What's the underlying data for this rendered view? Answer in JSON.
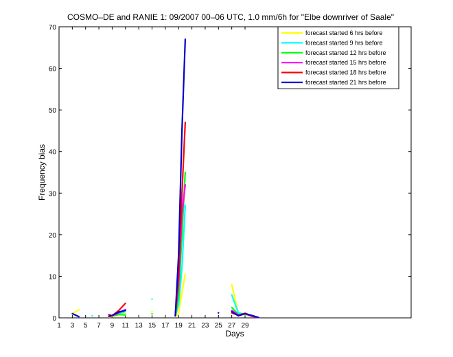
{
  "chart_data": {
    "type": "line",
    "title": "COSMO–DE and RANIE 1: 09/2007 00–06 UTC, 1.0 mm/6h for \"Elbe downriver of Saale\"",
    "xlabel": "Days",
    "ylabel": "Frequency bias",
    "xlim": [
      1,
      54
    ],
    "ylim": [
      0,
      70
    ],
    "xticks": [
      1,
      3,
      5,
      7,
      9,
      11,
      13,
      15,
      17,
      19,
      21,
      23,
      25,
      27,
      29
    ],
    "yticks": [
      0,
      10,
      20,
      30,
      40,
      50,
      60,
      70
    ],
    "legend_position": "top-right",
    "series": [
      {
        "name": "forecast started 6 hrs before",
        "color": "#ffff00",
        "segments": [
          [
            [
              3,
              1.0
            ],
            [
              4,
              2.0
            ]
          ],
          [
            [
              8.5,
              0.2
            ],
            [
              9,
              0.3
            ],
            [
              10,
              0.8
            ],
            [
              11,
              1.0
            ]
          ],
          [
            [
              18.5,
              0.4
            ],
            [
              19,
              1.0
            ],
            [
              19.5,
              6.0
            ],
            [
              20,
              10.5
            ]
          ],
          [
            [
              27,
              8.0
            ],
            [
              28,
              1.0
            ],
            [
              29,
              0.8
            ],
            [
              30,
              0.4
            ],
            [
              31,
              0.1
            ]
          ]
        ],
        "points": [
          [
            15,
            1.5
          ]
        ]
      },
      {
        "name": "forecast started 9 hrs before",
        "color": "#00ffff",
        "segments": [
          [
            [
              8.5,
              0.4
            ],
            [
              9,
              0.6
            ],
            [
              10,
              1.0
            ],
            [
              11,
              1.5
            ]
          ],
          [
            [
              18.5,
              0.5
            ],
            [
              19,
              3.0
            ],
            [
              19.5,
              12.0
            ],
            [
              20,
              27.0
            ]
          ],
          [
            [
              27,
              5.5
            ],
            [
              28,
              1.2
            ],
            [
              29,
              0.9
            ],
            [
              30,
              0.5
            ],
            [
              31,
              0.1
            ]
          ]
        ],
        "points": [
          [
            6,
            0.5
          ],
          [
            15,
            4.5
          ]
        ]
      },
      {
        "name": "forecast started 12 hrs before",
        "color": "#00ff00",
        "segments": [
          [
            [
              9,
              0.5
            ],
            [
              10,
              0.8
            ],
            [
              11,
              0.7
            ]
          ],
          [
            [
              18.5,
              0.5
            ],
            [
              19,
              5.0
            ],
            [
              19.5,
              20.0
            ],
            [
              20,
              35.0
            ]
          ],
          [
            [
              27,
              2.5
            ],
            [
              28,
              0.8
            ],
            [
              29,
              1.0
            ],
            [
              30,
              0.5
            ],
            [
              31,
              0.1
            ]
          ]
        ],
        "points": [
          [
            15,
            1.0
          ]
        ]
      },
      {
        "name": "forecast started 15 hrs before",
        "color": "#ff00ff",
        "segments": [
          [
            [
              8.5,
              0.3
            ],
            [
              9,
              0.5
            ],
            [
              10,
              1.2
            ],
            [
              11,
              2.0
            ]
          ],
          [
            [
              18.5,
              0.5
            ],
            [
              19,
              8.0
            ],
            [
              19.5,
              25.0
            ],
            [
              20,
              32.0
            ]
          ],
          [
            [
              27,
              1.8
            ],
            [
              28,
              0.7
            ],
            [
              29,
              1.0
            ],
            [
              30,
              0.4
            ],
            [
              31,
              0.1
            ]
          ]
        ],
        "points": []
      },
      {
        "name": "forecast started 18 hrs before",
        "color": "#ff0000",
        "segments": [
          [
            [
              8.5,
              0.8
            ],
            [
              9,
              0.5
            ],
            [
              10,
              1.8
            ],
            [
              11,
              3.5
            ]
          ],
          [
            [
              18.5,
              0.6
            ],
            [
              19,
              10.0
            ],
            [
              19.5,
              30.0
            ],
            [
              20,
              47.0
            ]
          ],
          [
            [
              27,
              1.2
            ],
            [
              28,
              0.6
            ],
            [
              29,
              1.1
            ],
            [
              30,
              0.5
            ],
            [
              31,
              0.1
            ]
          ]
        ],
        "points": []
      },
      {
        "name": "forecast started 21 hrs before",
        "color": "#0000cc",
        "segments": [
          [
            [
              3,
              1.0
            ],
            [
              4,
              0.3
            ]
          ],
          [
            [
              8.5,
              0.4
            ],
            [
              9,
              0.6
            ],
            [
              10,
              1.4
            ],
            [
              11,
              1.8
            ]
          ],
          [
            [
              18.5,
              0.5
            ],
            [
              19,
              15.0
            ],
            [
              19.5,
              45.0
            ],
            [
              20,
              67.0
            ]
          ],
          [
            [
              27,
              1.5
            ],
            [
              28,
              0.5
            ],
            [
              29,
              1.0
            ],
            [
              30,
              0.6
            ],
            [
              31,
              0.1
            ]
          ]
        ],
        "points": [
          [
            25,
            1.2
          ]
        ]
      }
    ]
  }
}
